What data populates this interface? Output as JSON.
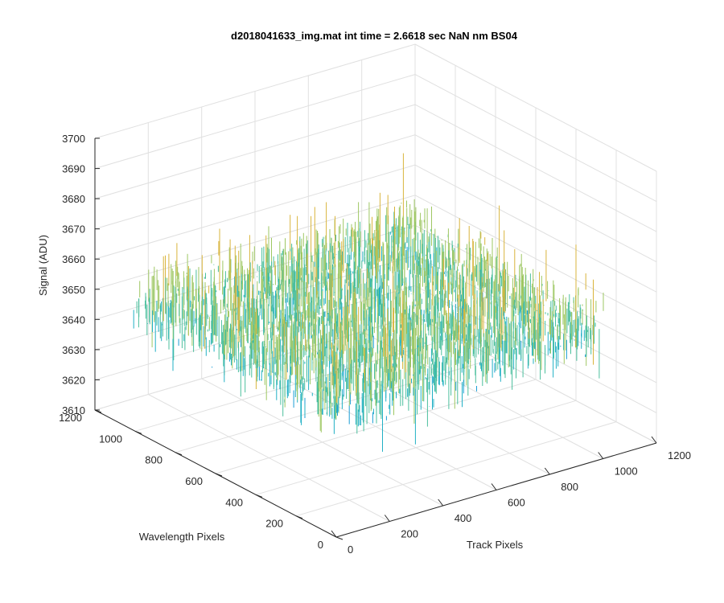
{
  "chart_data": {
    "type": "surface",
    "title": "d2018041633_img.mat int time = 2.6618 sec  NaN nm BS04",
    "zlabel": "Signal (ADU)",
    "xlabel": "Track Pixels",
    "ylabel": "Wavelength Pixels",
    "xlim": [
      0,
      1200
    ],
    "ylim": [
      0,
      1200
    ],
    "zlim": [
      3610,
      3700
    ],
    "x_ticks": [
      "0",
      "200",
      "400",
      "600",
      "800",
      "1000",
      "1200"
    ],
    "y_ticks": [
      "0",
      "200",
      "400",
      "600",
      "800",
      "1000",
      "1200"
    ],
    "z_ticks": [
      "3610",
      "3620",
      "3630",
      "3640",
      "3650",
      "3660",
      "3670",
      "3680",
      "3690",
      "3700"
    ],
    "grid": true,
    "data_extent": {
      "x": [
        0,
        1024
      ],
      "y": [
        0,
        1024
      ]
    },
    "signal_mean": 3652,
    "signal_range": [
      3615,
      3693
    ],
    "colormap": [
      "#0072bd",
      "#1b9ed6",
      "#21b0c5",
      "#4bbf9d",
      "#9ec763",
      "#d9b43c"
    ]
  }
}
